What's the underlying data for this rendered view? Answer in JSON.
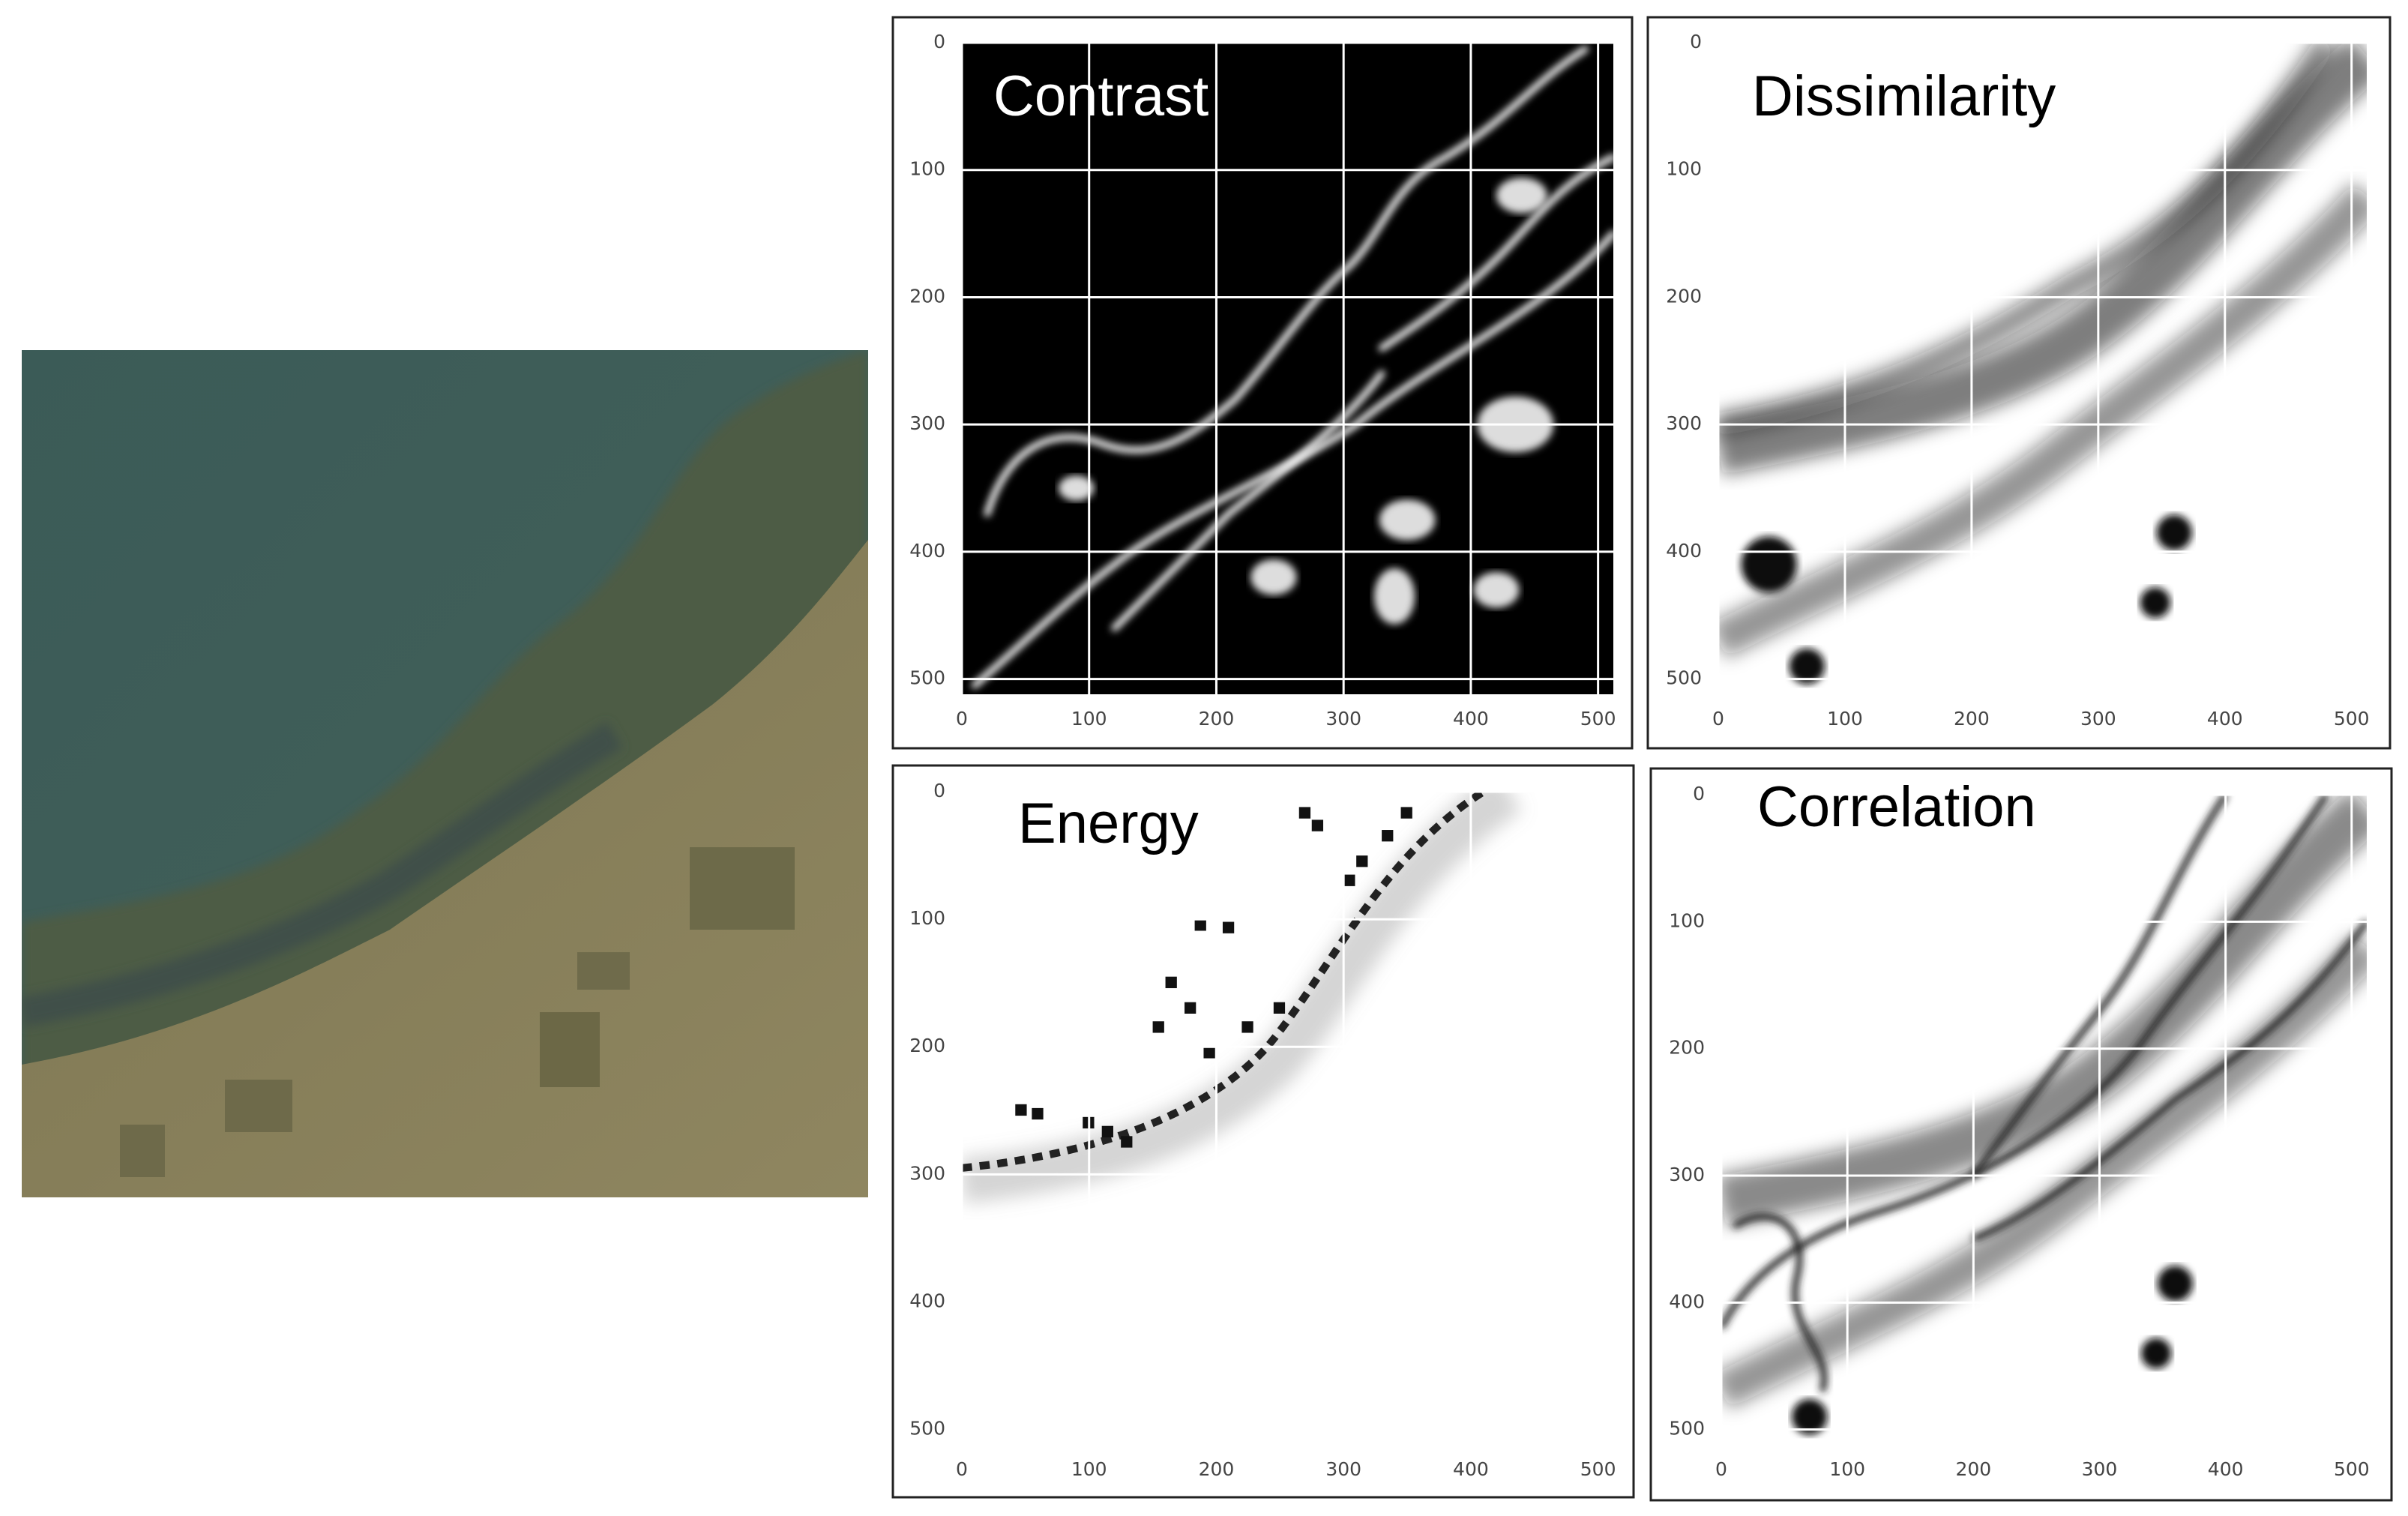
{
  "panels": [
    {
      "title": "Contrast",
      "xlim": [
        0,
        512
      ],
      "ylim": [
        0,
        512
      ],
      "xticks": [
        0,
        100,
        200,
        300,
        400,
        500
      ],
      "yticks": [
        0,
        100,
        200,
        300,
        400,
        500
      ]
    },
    {
      "title": "Dissimilarity",
      "xlim": [
        0,
        512
      ],
      "ylim": [
        0,
        512
      ],
      "xticks": [
        0,
        100,
        200,
        300,
        400,
        500
      ],
      "yticks": [
        0,
        100,
        200,
        300,
        400,
        500
      ]
    },
    {
      "title": "Energy",
      "xlim": [
        0,
        512
      ],
      "ylim": [
        0,
        512
      ],
      "xticks": [
        0,
        100,
        200,
        300,
        400,
        500
      ],
      "yticks": [
        0,
        100,
        200,
        300,
        400,
        500
      ]
    },
    {
      "title": "Correlation",
      "xlim": [
        0,
        512
      ],
      "ylim": [
        0,
        512
      ],
      "xticks": [
        0,
        100,
        200,
        300,
        400,
        500
      ],
      "yticks": [
        0,
        100,
        200,
        300,
        400,
        500
      ]
    }
  ]
}
